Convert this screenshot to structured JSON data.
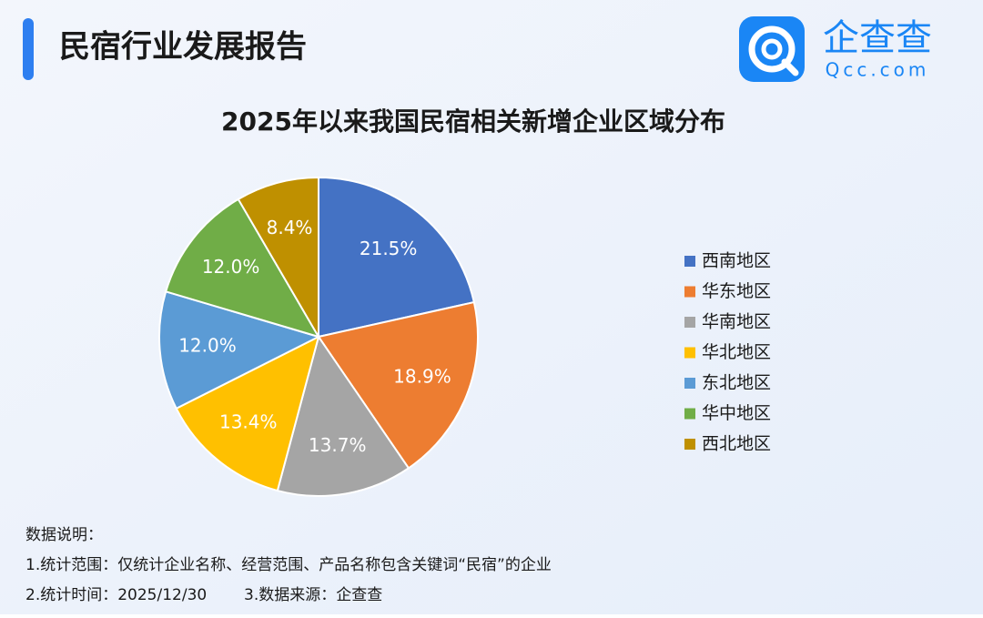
{
  "header": {
    "title": "民宿行业发展报告"
  },
  "logo": {
    "name": "企查查",
    "domain": "Qcc.com"
  },
  "chart_data": {
    "type": "pie",
    "title": "2025年以来我国民宿相关新增企业区域分布",
    "categories": [
      "西南地区",
      "华东地区",
      "华南地区",
      "华北地区",
      "东北地区",
      "华中地区",
      "西北地区"
    ],
    "values": [
      21.5,
      18.9,
      13.7,
      13.4,
      12.0,
      12.0,
      8.4
    ],
    "value_labels": [
      "21.5%",
      "18.9%",
      "13.7%",
      "13.4%",
      "12.0%",
      "12.0%",
      "8.4%"
    ],
    "colors": [
      "#4472c4",
      "#ed7d31",
      "#a5a5a5",
      "#ffc000",
      "#5b9bd5",
      "#70ad47",
      "#bf9000"
    ],
    "legend": "right"
  },
  "notes": {
    "heading": "数据说明：",
    "lines": [
      "1.统计范围：仅统计企业名称、经营范围、产品名称包含关键词“民宿”的企业",
      "2.统计时间：2025/12/30",
      "3.数据来源：企查查"
    ]
  }
}
